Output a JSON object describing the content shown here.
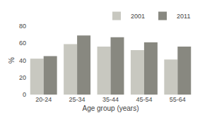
{
  "chart_data": {
    "type": "bar",
    "categories": [
      "20-24",
      "25-34",
      "35-44",
      "45-54",
      "55-64"
    ],
    "series": [
      {
        "name": "2001",
        "color": "#c8c8c0",
        "values": [
          42,
          59,
          56,
          52,
          41
        ]
      },
      {
        "name": "2011",
        "color": "#888880",
        "values": [
          45,
          69,
          67,
          61,
          56
        ]
      }
    ],
    "xlabel": "Age group (years)",
    "ylabel": "%",
    "ylim": [
      0,
      80
    ],
    "yticks": [
      0,
      20,
      40,
      60,
      80
    ],
    "grid": false,
    "legend": "upper right"
  }
}
